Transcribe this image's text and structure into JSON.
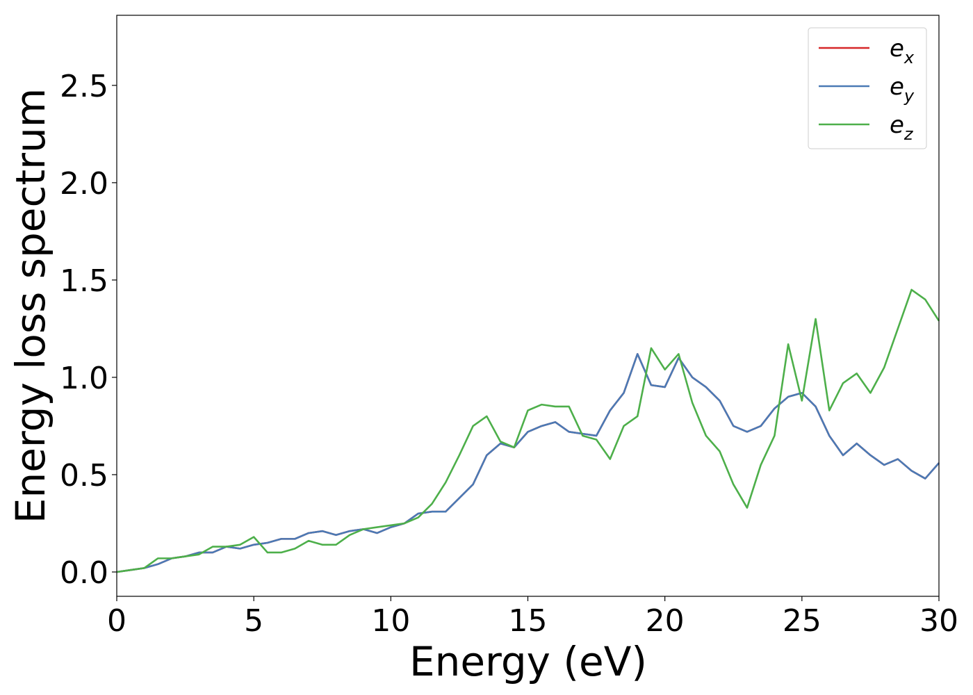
{
  "chart_data": {
    "type": "line",
    "xlabel": "Energy (eV)",
    "ylabel": "Energy loss spectrum",
    "xlim": [
      0,
      30
    ],
    "ylim": [
      -0.125,
      2.86
    ],
    "xticks": [
      0,
      5,
      10,
      15,
      20,
      25,
      30
    ],
    "yticks": [
      {
        "value": 0,
        "label": "0.0"
      },
      0.5,
      {
        "value": 1,
        "label": "1.0"
      },
      1.5,
      {
        "value": 2,
        "label": "2.0"
      },
      2.5
    ],
    "legend": "upper right",
    "x": [
      0,
      0.5,
      1,
      1.5,
      2,
      2.5,
      3,
      3.5,
      4,
      4.5,
      5,
      5.5,
      6,
      6.5,
      7,
      7.5,
      8,
      8.5,
      9,
      9.5,
      10,
      10.5,
      11,
      11.5,
      12,
      12.5,
      13,
      13.5,
      14,
      14.5,
      15,
      15.5,
      16,
      16.5,
      17,
      17.5,
      18,
      18.5,
      19,
      19.5,
      20,
      20.5,
      21,
      21.5,
      22,
      22.5,
      23,
      23.5,
      24,
      24.5,
      25,
      25.5,
      26,
      26.5,
      27,
      27.5,
      28,
      28.5,
      29,
      29.5,
      30
    ],
    "series": [
      {
        "name": "e_x",
        "color": "#d62728",
        "values": [
          0,
          0.01,
          0.02,
          0.04,
          0.07,
          0.08,
          0.1,
          0.1,
          0.13,
          0.12,
          0.14,
          0.15,
          0.17,
          0.17,
          0.2,
          0.21,
          0.19,
          0.21,
          0.22,
          0.2,
          0.23,
          0.25,
          0.3,
          0.31,
          0.31,
          0.38,
          0.45,
          0.6,
          0.66,
          0.64,
          0.72,
          0.75,
          0.77,
          0.72,
          0.71,
          0.7,
          0.83,
          0.92,
          1.12,
          0.96,
          0.95,
          1.1,
          1.0,
          0.95,
          0.88,
          0.75,
          0.72,
          0.75,
          0.84,
          0.9,
          0.92,
          0.85,
          0.7,
          0.6,
          0.66,
          0.6,
          0.55,
          0.58,
          0.52,
          0.48,
          0.56
        ]
      },
      {
        "name": "e_y",
        "color": "#4a7ab5",
        "values": [
          0,
          0.01,
          0.02,
          0.04,
          0.07,
          0.08,
          0.1,
          0.1,
          0.13,
          0.12,
          0.14,
          0.15,
          0.17,
          0.17,
          0.2,
          0.21,
          0.19,
          0.21,
          0.22,
          0.2,
          0.23,
          0.25,
          0.3,
          0.31,
          0.31,
          0.38,
          0.45,
          0.6,
          0.66,
          0.64,
          0.72,
          0.75,
          0.77,
          0.72,
          0.71,
          0.7,
          0.83,
          0.92,
          1.12,
          0.96,
          0.95,
          1.1,
          1.0,
          0.95,
          0.88,
          0.75,
          0.72,
          0.75,
          0.84,
          0.9,
          0.92,
          0.85,
          0.7,
          0.6,
          0.66,
          0.6,
          0.55,
          0.58,
          0.52,
          0.48,
          0.56
        ]
      },
      {
        "name": "e_z",
        "color": "#4daf4a",
        "values": [
          0,
          0.01,
          0.02,
          0.07,
          0.07,
          0.08,
          0.09,
          0.13,
          0.13,
          0.14,
          0.18,
          0.1,
          0.1,
          0.12,
          0.16,
          0.14,
          0.14,
          0.19,
          0.22,
          0.23,
          0.24,
          0.25,
          0.28,
          0.35,
          0.46,
          0.6,
          0.75,
          0.8,
          0.67,
          0.64,
          0.83,
          0.86,
          0.85,
          0.85,
          0.7,
          0.68,
          0.58,
          0.75,
          0.8,
          1.15,
          1.04,
          1.12,
          0.87,
          0.7,
          0.62,
          0.45,
          0.33,
          0.55,
          0.7,
          1.17,
          0.88,
          1.3,
          0.83,
          0.97,
          1.02,
          0.92,
          1.05,
          1.25,
          1.45,
          1.4,
          1.29
        ]
      }
    ]
  }
}
